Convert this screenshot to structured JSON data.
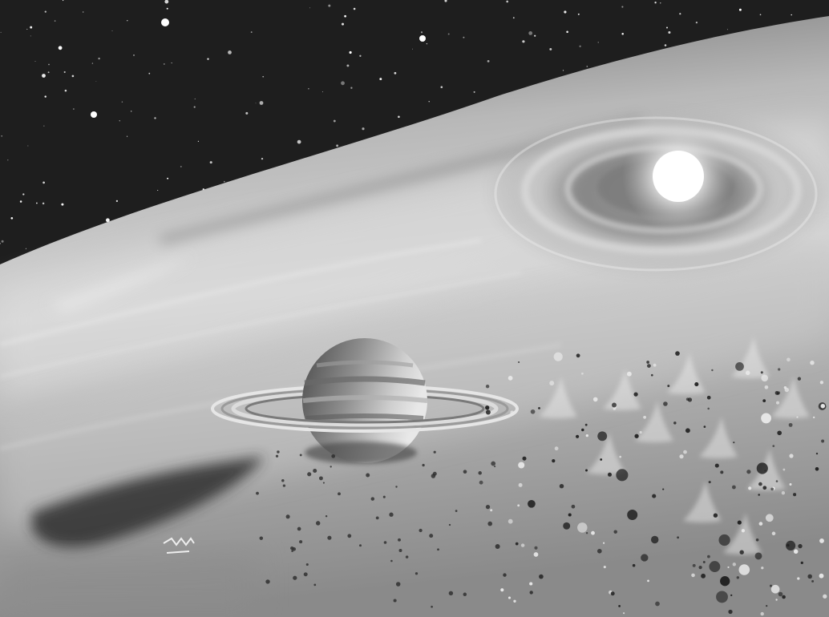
{
  "scene": {
    "palette": {
      "space": "#1c1c1c",
      "nebula_light": "#d8d8d8",
      "nebula_mid": "#9a9a9a",
      "dust_dark": "#3a3a3a",
      "star_core": "#ffffff",
      "planet_light": "#cfcfcf",
      "planet_dark": "#5a5a5a",
      "ring": "#e6e6e6"
    },
    "elements": {
      "background": "space-backdrop",
      "disk": "protoplanetary-disk",
      "star": "central-star",
      "planet": "ringed-planet",
      "asteroids": "asteroid-field",
      "signature": "artist-signature"
    }
  }
}
